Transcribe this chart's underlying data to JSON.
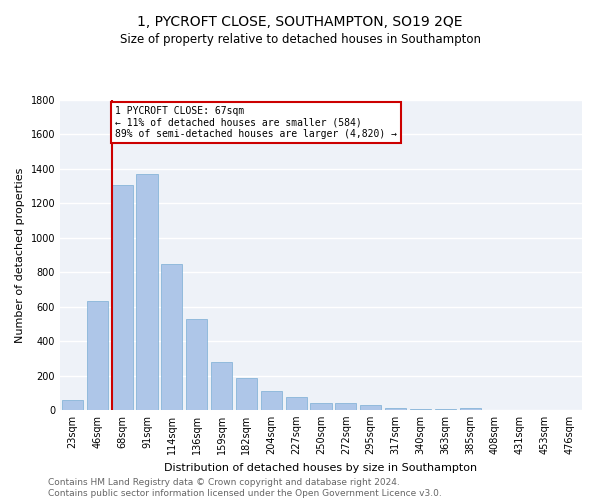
{
  "title": "1, PYCROFT CLOSE, SOUTHAMPTON, SO19 2QE",
  "subtitle": "Size of property relative to detached houses in Southampton",
  "xlabel": "Distribution of detached houses by size in Southampton",
  "ylabel": "Number of detached properties",
  "categories": [
    "23sqm",
    "46sqm",
    "68sqm",
    "91sqm",
    "114sqm",
    "136sqm",
    "159sqm",
    "182sqm",
    "204sqm",
    "227sqm",
    "250sqm",
    "272sqm",
    "295sqm",
    "317sqm",
    "340sqm",
    "363sqm",
    "385sqm",
    "408sqm",
    "431sqm",
    "453sqm",
    "476sqm"
  ],
  "values": [
    60,
    635,
    1305,
    1370,
    845,
    530,
    280,
    185,
    110,
    75,
    40,
    38,
    28,
    12,
    5,
    3,
    12,
    0,
    0,
    0,
    0
  ],
  "bar_color": "#aec6e8",
  "bar_edge_color": "#7aaed4",
  "property_line_index": 2,
  "annotation_title": "1 PYCROFT CLOSE: 67sqm",
  "annotation_line1": "← 11% of detached houses are smaller (584)",
  "annotation_line2": "89% of semi-detached houses are larger (4,820) →",
  "annotation_box_color": "#ffffff",
  "annotation_box_edge": "#cc0000",
  "property_line_color": "#cc0000",
  "background_color": "#ffffff",
  "plot_bg_color": "#eef2f8",
  "grid_color": "#ffffff",
  "ylim": [
    0,
    1800
  ],
  "yticks": [
    0,
    200,
    400,
    600,
    800,
    1000,
    1200,
    1400,
    1600,
    1800
  ],
  "footer": "Contains HM Land Registry data © Crown copyright and database right 2024.\nContains public sector information licensed under the Open Government Licence v3.0.",
  "title_fontsize": 10,
  "subtitle_fontsize": 8.5,
  "ylabel_fontsize": 8,
  "xlabel_fontsize": 8,
  "tick_fontsize": 7,
  "annotation_fontsize": 7,
  "footer_fontsize": 6.5
}
